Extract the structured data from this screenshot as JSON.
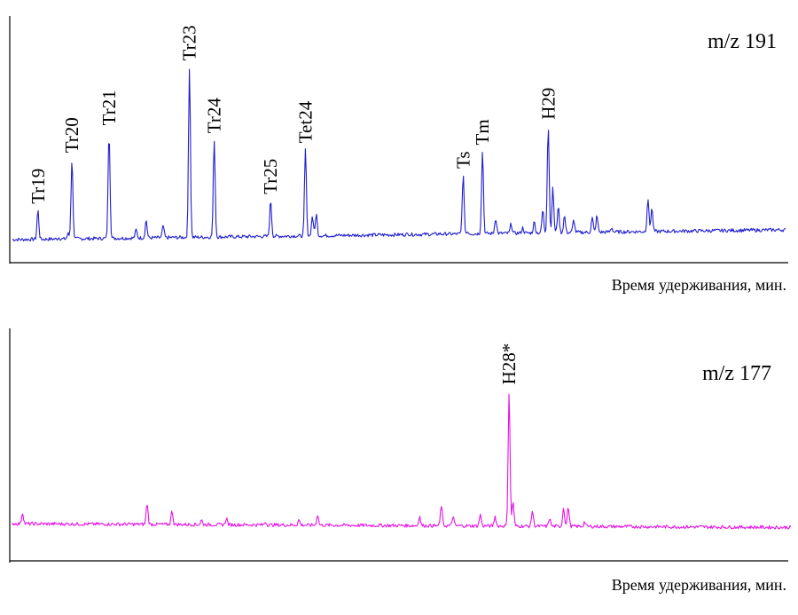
{
  "chart_data": [
    {
      "type": "line",
      "ion_label": "m/z 191",
      "title": "",
      "xlabel": "Время удерживания, мин.",
      "ylabel": "",
      "x_range": [
        0,
        100
      ],
      "y_range": [
        0,
        100
      ],
      "color": "#1f1fcf",
      "baseline": {
        "start": 5,
        "end": 10
      },
      "peaks": [
        {
          "label": "Tr19",
          "x": 3.3,
          "y": 20
        },
        {
          "label": "Tr20",
          "x": 7.7,
          "y": 46
        },
        {
          "label": "Tr21",
          "x": 12.5,
          "y": 60
        },
        {
          "label": "Tr23",
          "x": 22.9,
          "y": 93
        },
        {
          "label": "Tr24",
          "x": 26.1,
          "y": 56
        },
        {
          "label": "Tr25",
          "x": 33.4,
          "y": 25
        },
        {
          "label": "Tet24",
          "x": 37.9,
          "y": 51
        },
        {
          "label": "Ts",
          "x": 58.3,
          "y": 38
        },
        {
          "label": "Tm",
          "x": 60.8,
          "y": 50
        },
        {
          "label": "H29",
          "x": 69.3,
          "y": 63
        }
      ],
      "minor_peaks": [
        {
          "x": 6.0,
          "y": 6
        },
        {
          "x": 7.2,
          "y": 8
        },
        {
          "x": 10.5,
          "y": 5
        },
        {
          "x": 16.0,
          "y": 10
        },
        {
          "x": 17.3,
          "y": 15
        },
        {
          "x": 19.5,
          "y": 12
        },
        {
          "x": 21.3,
          "y": 6
        },
        {
          "x": 24.5,
          "y": 5
        },
        {
          "x": 35.0,
          "y": 6
        },
        {
          "x": 38.8,
          "y": 17
        },
        {
          "x": 39.3,
          "y": 18
        },
        {
          "x": 42.5,
          "y": 6
        },
        {
          "x": 44.8,
          "y": 5
        },
        {
          "x": 51.2,
          "y": 8
        },
        {
          "x": 55.2,
          "y": 8
        },
        {
          "x": 56.2,
          "y": 8
        },
        {
          "x": 58.9,
          "y": 9
        },
        {
          "x": 62.5,
          "y": 16
        },
        {
          "x": 64.5,
          "y": 13
        },
        {
          "x": 66.0,
          "y": 11
        },
        {
          "x": 67.5,
          "y": 14
        },
        {
          "x": 68.6,
          "y": 20
        },
        {
          "x": 69.9,
          "y": 31
        },
        {
          "x": 70.6,
          "y": 22
        },
        {
          "x": 71.4,
          "y": 17
        },
        {
          "x": 72.6,
          "y": 15
        },
        {
          "x": 75.0,
          "y": 16
        },
        {
          "x": 75.6,
          "y": 17
        },
        {
          "x": 77.5,
          "y": 11
        },
        {
          "x": 79.0,
          "y": 8
        },
        {
          "x": 82.2,
          "y": 26
        },
        {
          "x": 82.7,
          "y": 21
        },
        {
          "x": 84.0,
          "y": 7
        }
      ]
    },
    {
      "type": "line",
      "ion_label": "m/z 177",
      "title": "",
      "xlabel": "Время удерживания, мин.",
      "ylabel": "",
      "x_range": [
        0,
        100
      ],
      "y_range": [
        0,
        100
      ],
      "color": "#e612e6",
      "baseline": {
        "start": 11,
        "end": 9
      },
      "peaks": [
        {
          "label": "H28*",
          "x": 63.8,
          "y": 83
        }
      ],
      "minor_peaks": [
        {
          "x": 1.3,
          "y": 17
        },
        {
          "x": 17.3,
          "y": 22
        },
        {
          "x": 20.5,
          "y": 18
        },
        {
          "x": 24.3,
          "y": 13
        },
        {
          "x": 27.5,
          "y": 14
        },
        {
          "x": 32.5,
          "y": 12
        },
        {
          "x": 36.8,
          "y": 13
        },
        {
          "x": 39.2,
          "y": 16
        },
        {
          "x": 52.3,
          "y": 15
        },
        {
          "x": 55.1,
          "y": 21
        },
        {
          "x": 56.6,
          "y": 15
        },
        {
          "x": 60.1,
          "y": 16
        },
        {
          "x": 62.0,
          "y": 15
        },
        {
          "x": 64.3,
          "y": 23
        },
        {
          "x": 66.8,
          "y": 18
        },
        {
          "x": 69.0,
          "y": 14
        },
        {
          "x": 70.8,
          "y": 20
        },
        {
          "x": 71.4,
          "y": 20
        },
        {
          "x": 73.5,
          "y": 12
        }
      ]
    }
  ]
}
